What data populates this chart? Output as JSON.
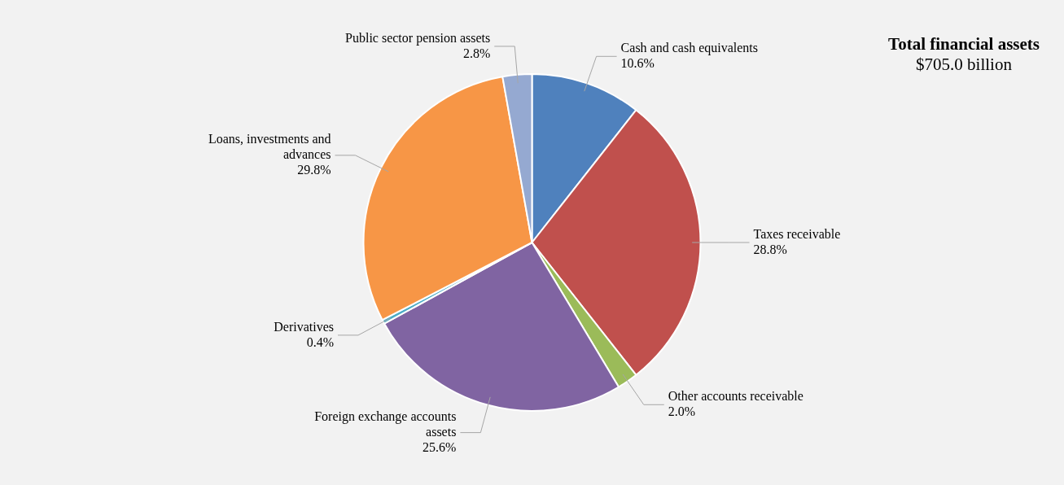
{
  "chart_data": {
    "type": "pie",
    "title": "Total financial assets",
    "subtitle": "$705.0 billion",
    "categories": [
      "Cash and cash equivalents",
      "Taxes receivable",
      "Other accounts receivable",
      "Foreign exchange accounts assets",
      "Derivatives",
      "Loans, investments and advances",
      "Public sector pension assets"
    ],
    "values": [
      10.6,
      28.8,
      2.0,
      25.6,
      0.4,
      29.8,
      2.8
    ],
    "value_labels": [
      "10.6%",
      "28.8%",
      "2.0%",
      "25.6%",
      "0.4%",
      "29.8%",
      "2.8%"
    ],
    "colors": [
      "#4f81bd",
      "#c0504d",
      "#9bbb59",
      "#8064a2",
      "#4bacc6",
      "#f79646",
      "#95a9d1"
    ],
    "legend": false
  }
}
